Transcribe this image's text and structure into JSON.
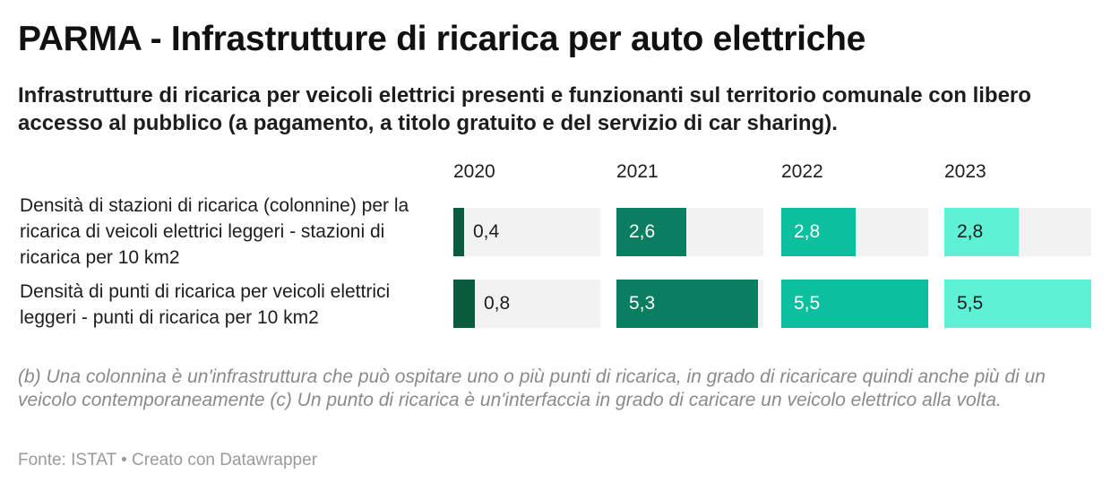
{
  "header": {
    "title": "PARMA - Infrastrutture di ricarica per auto elettriche",
    "subtitle": "Infrastrutture di ricarica per veicoli elettrici presenti e funzionanti sul territorio comunale con libero accesso al pubblico (a pagamento, a titolo gratuito e del servizio di car sharing)."
  },
  "chart_data": {
    "type": "bar",
    "layout": "small-multiples-horizontal",
    "categories": [
      "Densità di stazioni di ricarica (colonnine) per la ricarica di veicoli elettrici leggeri - stazioni di ricarica per 10 km2",
      "Densità di punti di ricarica per veicoli elettrici leggeri - punti di ricarica per 10 km2"
    ],
    "series": [
      {
        "name": "2020",
        "values": [
          0.4,
          0.8
        ],
        "labels": [
          "0,4",
          "0,8"
        ],
        "color": "#0a5c3f"
      },
      {
        "name": "2021",
        "values": [
          2.6,
          5.3
        ],
        "labels": [
          "2,6",
          "5,3"
        ],
        "color": "#0b7d60"
      },
      {
        "name": "2022",
        "values": [
          2.8,
          5.5
        ],
        "labels": [
          "2,8",
          "5,5"
        ],
        "color": "#0cbf9f"
      },
      {
        "name": "2023",
        "values": [
          2.8,
          5.5
        ],
        "labels": [
          "2,8",
          "5,5"
        ],
        "color": "#5ef1d5"
      }
    ],
    "xlim": [
      0,
      5.5
    ],
    "grid": false,
    "label_colors": {
      "dark_bg": "#ffffff",
      "light_bg": "#1d1d1d"
    }
  },
  "notes": "(b) Una colonnina è un'infrastruttura che può ospitare uno o più punti di ricarica, in grado di ricaricare quindi anche più di un veicolo contemporaneamente (c) Un punto di ricarica è un'interfaccia in grado di caricare un veicolo elettrico alla volta.",
  "footer": "Fonte: ISTAT • Creato con Datawrapper"
}
